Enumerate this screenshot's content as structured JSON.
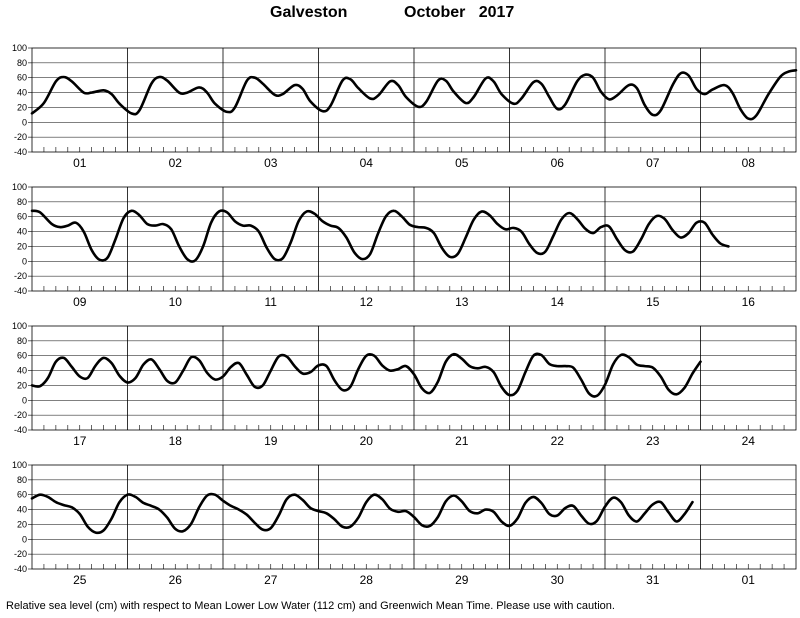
{
  "title": {
    "station": "Galveston",
    "month": "October",
    "year": "2017"
  },
  "caption": "Relative sea level (cm) with respect to Mean Lower Low Water (112 cm) and Greenwich Mean Time. Please use with caution.",
  "colors": {
    "line": "#000000",
    "axis": "#000000",
    "background": "#ffffff"
  },
  "chart_data": [
    {
      "type": "line",
      "panel": 1,
      "xlabels": [
        "01",
        "02",
        "03",
        "04",
        "05",
        "06",
        "07",
        "08"
      ],
      "ylim": [
        -40,
        100
      ],
      "yticks": [
        -40,
        -20,
        0,
        20,
        40,
        60,
        80,
        100
      ],
      "x_unit": "hours",
      "x_range": [
        0,
        192
      ],
      "points": [
        [
          0,
          12
        ],
        [
          3,
          26
        ],
        [
          6,
          55
        ],
        [
          8,
          61
        ],
        [
          10,
          55
        ],
        [
          13,
          40
        ],
        [
          15,
          40
        ],
        [
          18,
          43
        ],
        [
          20,
          38
        ],
        [
          22,
          25
        ],
        [
          25,
          12
        ],
        [
          27,
          16
        ],
        [
          30,
          52
        ],
        [
          32,
          61
        ],
        [
          34,
          56
        ],
        [
          37,
          40
        ],
        [
          39,
          40
        ],
        [
          42,
          47
        ],
        [
          44,
          40
        ],
        [
          46,
          25
        ],
        [
          49,
          14
        ],
        [
          51,
          20
        ],
        [
          54,
          56
        ],
        [
          56,
          60
        ],
        [
          58,
          52
        ],
        [
          61,
          37
        ],
        [
          63,
          38
        ],
        [
          66,
          50
        ],
        [
          68,
          45
        ],
        [
          70,
          28
        ],
        [
          73,
          15
        ],
        [
          75,
          22
        ],
        [
          78,
          56
        ],
        [
          80,
          58
        ],
        [
          82,
          46
        ],
        [
          85,
          32
        ],
        [
          87,
          36
        ],
        [
          90,
          55
        ],
        [
          92,
          50
        ],
        [
          94,
          34
        ],
        [
          97,
          21
        ],
        [
          99,
          27
        ],
        [
          102,
          56
        ],
        [
          104,
          56
        ],
        [
          106,
          41
        ],
        [
          109,
          26
        ],
        [
          111,
          34
        ],
        [
          114,
          59
        ],
        [
          116,
          55
        ],
        [
          118,
          38
        ],
        [
          121,
          25
        ],
        [
          123,
          32
        ],
        [
          126,
          54
        ],
        [
          128,
          52
        ],
        [
          130,
          34
        ],
        [
          132,
          18
        ],
        [
          134,
          24
        ],
        [
          137,
          55
        ],
        [
          139,
          64
        ],
        [
          141,
          60
        ],
        [
          143,
          41
        ],
        [
          145,
          31
        ],
        [
          147,
          36
        ],
        [
          150,
          50
        ],
        [
          152,
          46
        ],
        [
          154,
          23
        ],
        [
          156,
          10
        ],
        [
          158,
          16
        ],
        [
          161,
          50
        ],
        [
          163,
          66
        ],
        [
          165,
          63
        ],
        [
          167,
          45
        ],
        [
          169,
          38
        ],
        [
          171,
          44
        ],
        [
          174,
          50
        ],
        [
          176,
          40
        ],
        [
          178,
          18
        ],
        [
          180,
          5
        ],
        [
          182,
          9
        ],
        [
          185,
          37
        ],
        [
          188,
          61
        ],
        [
          190,
          68
        ],
        [
          192,
          70
        ]
      ]
    },
    {
      "type": "line",
      "panel": 2,
      "xlabels": [
        "09",
        "10",
        "11",
        "12",
        "13",
        "14",
        "15",
        "16"
      ],
      "ylim": [
        -40,
        100
      ],
      "yticks": [
        -40,
        -20,
        0,
        20,
        40,
        60,
        80,
        100
      ],
      "x_unit": "hours",
      "x_range": [
        0,
        192
      ],
      "points": [
        [
          0,
          68
        ],
        [
          2,
          66
        ],
        [
          5,
          50
        ],
        [
          7,
          46
        ],
        [
          9,
          48
        ],
        [
          11,
          52
        ],
        [
          13,
          40
        ],
        [
          15,
          15
        ],
        [
          17,
          2
        ],
        [
          19,
          5
        ],
        [
          21,
          30
        ],
        [
          23,
          58
        ],
        [
          25,
          68
        ],
        [
          27,
          62
        ],
        [
          29,
          50
        ],
        [
          31,
          48
        ],
        [
          33,
          50
        ],
        [
          35,
          43
        ],
        [
          37,
          20
        ],
        [
          39,
          3
        ],
        [
          41,
          1
        ],
        [
          43,
          20
        ],
        [
          45,
          52
        ],
        [
          47,
          67
        ],
        [
          49,
          66
        ],
        [
          51,
          54
        ],
        [
          53,
          48
        ],
        [
          55,
          48
        ],
        [
          57,
          40
        ],
        [
          59,
          18
        ],
        [
          61,
          3
        ],
        [
          63,
          4
        ],
        [
          65,
          25
        ],
        [
          67,
          54
        ],
        [
          69,
          67
        ],
        [
          71,
          64
        ],
        [
          73,
          54
        ],
        [
          75,
          48
        ],
        [
          77,
          45
        ],
        [
          79,
          32
        ],
        [
          81,
          12
        ],
        [
          83,
          3
        ],
        [
          85,
          10
        ],
        [
          87,
          38
        ],
        [
          89,
          61
        ],
        [
          91,
          68
        ],
        [
          93,
          60
        ],
        [
          95,
          49
        ],
        [
          97,
          46
        ],
        [
          99,
          45
        ],
        [
          101,
          38
        ],
        [
          103,
          18
        ],
        [
          105,
          6
        ],
        [
          107,
          10
        ],
        [
          109,
          32
        ],
        [
          111,
          56
        ],
        [
          113,
          67
        ],
        [
          115,
          62
        ],
        [
          117,
          50
        ],
        [
          119,
          43
        ],
        [
          121,
          45
        ],
        [
          123,
          40
        ],
        [
          125,
          23
        ],
        [
          127,
          11
        ],
        [
          129,
          13
        ],
        [
          131,
          34
        ],
        [
          133,
          56
        ],
        [
          135,
          65
        ],
        [
          137,
          57
        ],
        [
          139,
          44
        ],
        [
          141,
          38
        ],
        [
          143,
          46
        ],
        [
          145,
          47
        ],
        [
          147,
          30
        ],
        [
          149,
          15
        ],
        [
          151,
          13
        ],
        [
          153,
          29
        ],
        [
          155,
          50
        ],
        [
          157,
          61
        ],
        [
          159,
          57
        ],
        [
          161,
          42
        ],
        [
          163,
          32
        ],
        [
          165,
          38
        ],
        [
          167,
          52
        ],
        [
          169,
          52
        ],
        [
          171,
          36
        ],
        [
          173,
          24
        ],
        [
          175,
          20
        ]
      ]
    },
    {
      "type": "line",
      "panel": 3,
      "xlabels": [
        "17",
        "18",
        "19",
        "20",
        "21",
        "22",
        "23",
        "24"
      ],
      "ylim": [
        -40,
        100
      ],
      "yticks": [
        -40,
        -20,
        0,
        20,
        40,
        60,
        80,
        100
      ],
      "x_unit": "hours",
      "x_range": [
        0,
        192
      ],
      "points": [
        [
          0,
          20
        ],
        [
          2,
          19
        ],
        [
          4,
          30
        ],
        [
          6,
          52
        ],
        [
          8,
          57
        ],
        [
          10,
          45
        ],
        [
          12,
          32
        ],
        [
          14,
          30
        ],
        [
          16,
          47
        ],
        [
          18,
          57
        ],
        [
          20,
          50
        ],
        [
          22,
          33
        ],
        [
          24,
          24
        ],
        [
          26,
          30
        ],
        [
          28,
          48
        ],
        [
          30,
          55
        ],
        [
          32,
          42
        ],
        [
          34,
          26
        ],
        [
          36,
          24
        ],
        [
          38,
          40
        ],
        [
          40,
          58
        ],
        [
          42,
          54
        ],
        [
          44,
          37
        ],
        [
          46,
          28
        ],
        [
          48,
          32
        ],
        [
          50,
          45
        ],
        [
          52,
          50
        ],
        [
          54,
          34
        ],
        [
          56,
          18
        ],
        [
          58,
          20
        ],
        [
          60,
          40
        ],
        [
          62,
          59
        ],
        [
          64,
          59
        ],
        [
          66,
          46
        ],
        [
          68,
          36
        ],
        [
          70,
          38
        ],
        [
          72,
          47
        ],
        [
          74,
          46
        ],
        [
          76,
          27
        ],
        [
          78,
          14
        ],
        [
          80,
          18
        ],
        [
          82,
          42
        ],
        [
          84,
          60
        ],
        [
          86,
          60
        ],
        [
          88,
          47
        ],
        [
          90,
          40
        ],
        [
          92,
          42
        ],
        [
          94,
          46
        ],
        [
          96,
          35
        ],
        [
          98,
          16
        ],
        [
          100,
          10
        ],
        [
          102,
          25
        ],
        [
          104,
          52
        ],
        [
          106,
          62
        ],
        [
          108,
          56
        ],
        [
          110,
          46
        ],
        [
          112,
          43
        ],
        [
          114,
          45
        ],
        [
          116,
          38
        ],
        [
          118,
          18
        ],
        [
          120,
          7
        ],
        [
          122,
          13
        ],
        [
          124,
          38
        ],
        [
          126,
          60
        ],
        [
          128,
          61
        ],
        [
          130,
          49
        ],
        [
          132,
          46
        ],
        [
          134,
          46
        ],
        [
          136,
          44
        ],
        [
          138,
          28
        ],
        [
          140,
          9
        ],
        [
          142,
          6
        ],
        [
          144,
          21
        ],
        [
          146,
          48
        ],
        [
          148,
          61
        ],
        [
          150,
          58
        ],
        [
          152,
          48
        ],
        [
          154,
          46
        ],
        [
          156,
          44
        ],
        [
          158,
          32
        ],
        [
          160,
          14
        ],
        [
          162,
          8
        ],
        [
          164,
          17
        ],
        [
          166,
          36
        ],
        [
          168,
          52
        ]
      ]
    },
    {
      "type": "line",
      "panel": 4,
      "xlabels": [
        "25",
        "26",
        "27",
        "28",
        "29",
        "30",
        "31",
        "01"
      ],
      "ylim": [
        -40,
        100
      ],
      "yticks": [
        -40,
        -20,
        0,
        20,
        40,
        60,
        80,
        100
      ],
      "x_unit": "hours",
      "x_range": [
        0,
        192
      ],
      "points": [
        [
          0,
          55
        ],
        [
          2,
          60
        ],
        [
          4,
          57
        ],
        [
          6,
          50
        ],
        [
          8,
          46
        ],
        [
          10,
          43
        ],
        [
          12,
          34
        ],
        [
          14,
          17
        ],
        [
          16,
          9
        ],
        [
          18,
          12
        ],
        [
          20,
          28
        ],
        [
          22,
          50
        ],
        [
          24,
          60
        ],
        [
          26,
          57
        ],
        [
          28,
          49
        ],
        [
          30,
          45
        ],
        [
          32,
          40
        ],
        [
          34,
          29
        ],
        [
          36,
          14
        ],
        [
          38,
          11
        ],
        [
          40,
          21
        ],
        [
          42,
          43
        ],
        [
          44,
          59
        ],
        [
          46,
          60
        ],
        [
          48,
          52
        ],
        [
          50,
          45
        ],
        [
          52,
          40
        ],
        [
          54,
          33
        ],
        [
          56,
          22
        ],
        [
          58,
          13
        ],
        [
          60,
          15
        ],
        [
          62,
          32
        ],
        [
          64,
          54
        ],
        [
          66,
          60
        ],
        [
          68,
          53
        ],
        [
          70,
          42
        ],
        [
          72,
          38
        ],
        [
          74,
          35
        ],
        [
          76,
          27
        ],
        [
          78,
          17
        ],
        [
          80,
          17
        ],
        [
          82,
          29
        ],
        [
          84,
          50
        ],
        [
          86,
          60
        ],
        [
          88,
          54
        ],
        [
          90,
          41
        ],
        [
          92,
          37
        ],
        [
          94,
          38
        ],
        [
          96,
          30
        ],
        [
          98,
          19
        ],
        [
          100,
          18
        ],
        [
          102,
          30
        ],
        [
          104,
          51
        ],
        [
          106,
          59
        ],
        [
          108,
          51
        ],
        [
          110,
          38
        ],
        [
          112,
          35
        ],
        [
          114,
          40
        ],
        [
          116,
          37
        ],
        [
          118,
          24
        ],
        [
          120,
          18
        ],
        [
          122,
          28
        ],
        [
          124,
          49
        ],
        [
          126,
          57
        ],
        [
          128,
          49
        ],
        [
          130,
          34
        ],
        [
          132,
          32
        ],
        [
          134,
          42
        ],
        [
          136,
          45
        ],
        [
          138,
          32
        ],
        [
          140,
          21
        ],
        [
          142,
          25
        ],
        [
          144,
          44
        ],
        [
          146,
          56
        ],
        [
          148,
          50
        ],
        [
          150,
          32
        ],
        [
          152,
          24
        ],
        [
          154,
          35
        ],
        [
          156,
          47
        ],
        [
          158,
          50
        ],
        [
          160,
          36
        ],
        [
          162,
          24
        ],
        [
          164,
          34
        ],
        [
          166,
          50
        ]
      ]
    }
  ]
}
